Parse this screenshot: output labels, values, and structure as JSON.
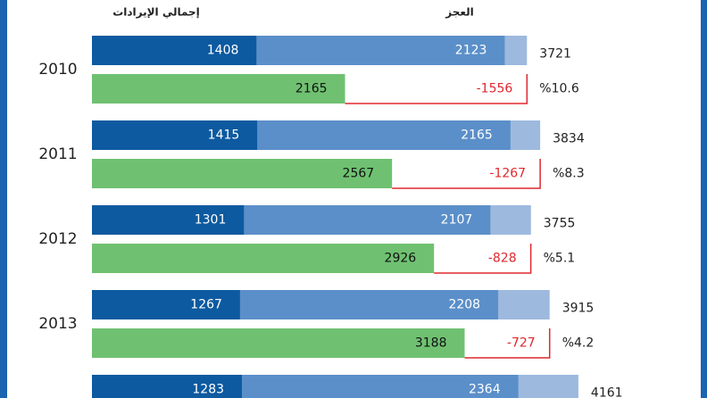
{
  "chart_data": {
    "type": "bar",
    "headers": [
      "إجمالي الإيرادات",
      "العجز"
    ],
    "categories": [
      "2010",
      "2011",
      "2012",
      "2013",
      null
    ],
    "xlim": [
      0,
      5200
    ],
    "expenditure": [
      {
        "color": "#0d5aa0",
        "values": [
          1408,
          1415,
          1301,
          1267,
          1283
        ]
      },
      {
        "color": "#5b8fc9",
        "values": [
          2123,
          2165,
          2107,
          2208,
          2364
        ]
      }
    ],
    "total": {
      "color": "#9db9de",
      "values": [
        3721,
        3834,
        3755,
        3915,
        4161
      ]
    },
    "revenue": {
      "color": "#6fc171",
      "values": [
        2165,
        2567,
        2926,
        3188,
        null
      ]
    },
    "deficit": {
      "color": "#e0282e",
      "values": [
        -1556,
        -1267,
        -828,
        -727,
        null
      ]
    },
    "deficit_pct": {
      "values": [
        10.6,
        8.3,
        5.1,
        4.2,
        null
      ],
      "value_labels": [
        "%10.6",
        "%8.3",
        "%5.1",
        "%4.2",
        null
      ]
    }
  }
}
